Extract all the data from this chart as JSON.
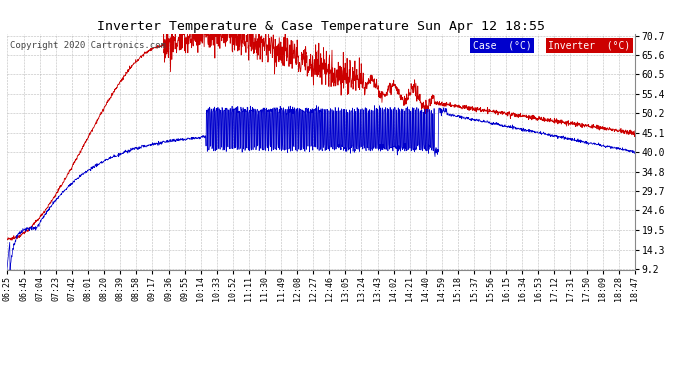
{
  "title": "Inverter Temperature & Case Temperature Sun Apr 12 18:55",
  "copyright": "Copyright 2020 Cartronics.com",
  "background_color": "#ffffff",
  "plot_bg_color": "#ffffff",
  "grid_color": "#aaaaaa",
  "legend_case_label": "Case  (°C)",
  "legend_inverter_label": "Inverter  (°C)",
  "legend_case_bg": "#0000cc",
  "legend_inverter_bg": "#cc0000",
  "case_color": "#0000cc",
  "inverter_color": "#cc0000",
  "yticks": [
    9.2,
    14.3,
    19.5,
    24.6,
    29.7,
    34.8,
    40.0,
    45.1,
    50.2,
    55.4,
    60.5,
    65.6,
    70.7
  ],
  "ymin": 9.2,
  "ymax": 70.7,
  "start_time": "06:25",
  "end_time": "18:47",
  "xtick_labels": [
    "06:25",
    "06:45",
    "07:04",
    "07:23",
    "07:42",
    "08:01",
    "08:20",
    "08:39",
    "08:58",
    "09:17",
    "09:36",
    "09:55",
    "10:14",
    "10:33",
    "10:52",
    "11:11",
    "11:30",
    "11:49",
    "12:08",
    "12:27",
    "12:46",
    "13:05",
    "13:24",
    "13:43",
    "14:02",
    "14:21",
    "14:40",
    "14:59",
    "15:18",
    "15:37",
    "15:56",
    "16:15",
    "16:34",
    "16:53",
    "17:12",
    "17:31",
    "17:50",
    "18:09",
    "18:28",
    "18:47"
  ]
}
